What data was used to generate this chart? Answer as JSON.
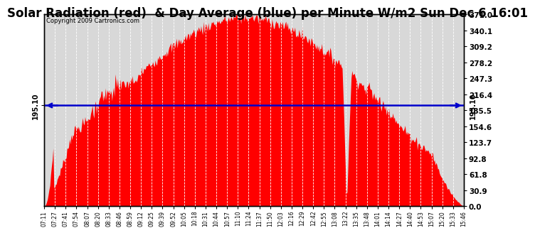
{
  "title": "Solar Radiation (red)  & Day Average (blue) per Minute W/m2 Sun Dec 6 16:01",
  "copyright": "Copyright 2009 Cartronics.com",
  "y_right_ticks": [
    0.0,
    30.9,
    61.8,
    92.8,
    123.7,
    154.6,
    185.5,
    216.4,
    247.3,
    278.2,
    309.2,
    340.1,
    371.0
  ],
  "y_max": 371.0,
  "y_min": 0.0,
  "avg_value": 195.1,
  "avg_label": "195.10",
  "background_color": "#ffffff",
  "plot_bg_color": "#d8d8d8",
  "fill_color": "#ff0000",
  "avg_line_color": "#0000cc",
  "grid_color": "#ffffff",
  "title_fontsize": 12,
  "x_labels": [
    "07:11",
    "07:27",
    "07:41",
    "07:54",
    "08:07",
    "08:20",
    "08:33",
    "08:46",
    "08:59",
    "09:12",
    "09:25",
    "09:39",
    "09:52",
    "10:05",
    "10:18",
    "10:31",
    "10:44",
    "10:57",
    "11:10",
    "11:24",
    "11:37",
    "11:50",
    "12:03",
    "12:16",
    "12:29",
    "12:42",
    "12:55",
    "13:08",
    "13:22",
    "13:35",
    "13:48",
    "14:01",
    "14:14",
    "14:27",
    "14:40",
    "14:53",
    "15:07",
    "15:20",
    "15:33",
    "15:46"
  ]
}
